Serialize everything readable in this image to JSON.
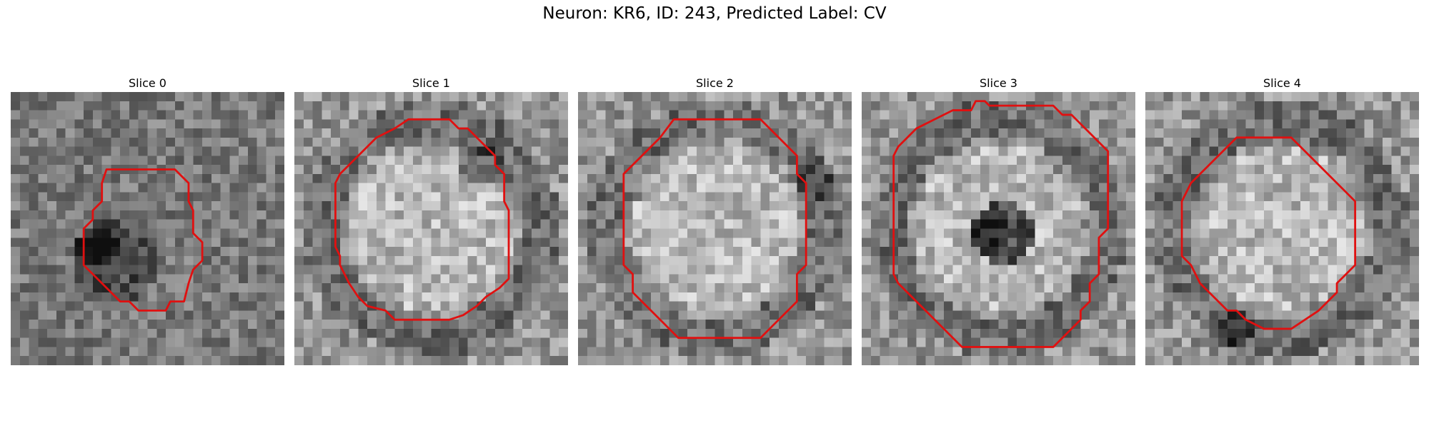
{
  "figure": {
    "title": "Neuron: KR6, ID: 243, Predicted Label: CV"
  },
  "panels": [
    {
      "title": "Slice 0",
      "dark_blob": [
        0.3,
        0.55
      ]
    },
    {
      "title": "Slice 1",
      "dark_blob": [
        0.66,
        0.25
      ]
    },
    {
      "title": "Slice 2",
      "dark_blob": [
        0.85,
        0.3
      ]
    },
    {
      "title": "Slice 3",
      "dark_blob": [
        0.45,
        0.5
      ]
    },
    {
      "title": "Slice 4",
      "dark_blob": [
        0.3,
        0.85
      ]
    }
  ],
  "colors": {
    "contour": "#e01010"
  }
}
